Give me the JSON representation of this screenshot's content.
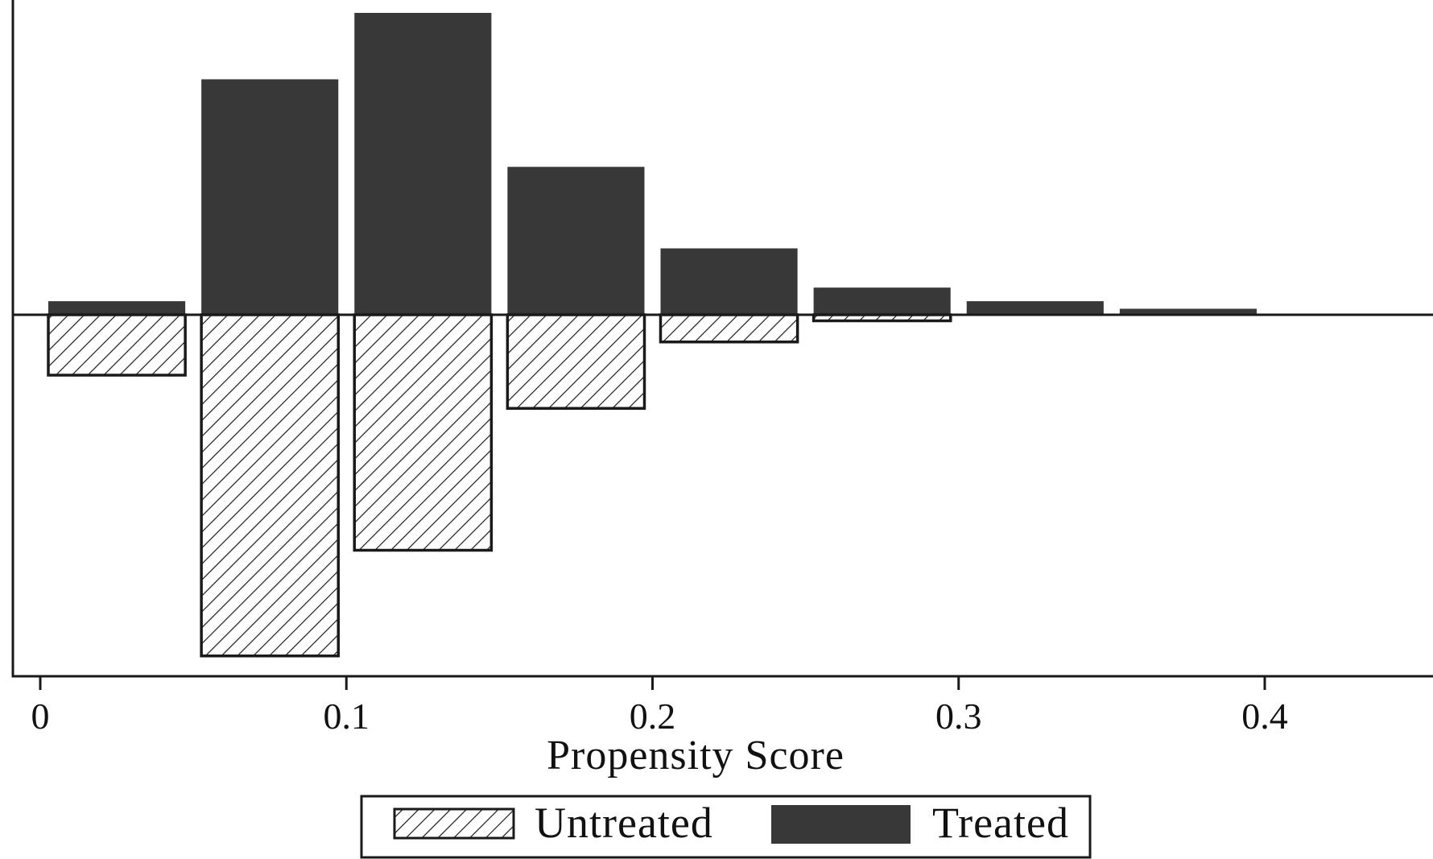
{
  "chart_data": {
    "type": "bar",
    "subtype": "mirrored-histogram",
    "title": "",
    "xlabel": "Propensity Score",
    "ylabel": "",
    "x_ticks": [
      0,
      0.1,
      0.2,
      0.3,
      0.4
    ],
    "x_tick_labels": [
      "0",
      "0.1",
      "0.2",
      "0.3",
      "0.4"
    ],
    "xlim": [
      -0.01,
      0.455
    ],
    "bin_width": 0.05,
    "bins": [
      0.0,
      0.05,
      0.1,
      0.15,
      0.2,
      0.25,
      0.3,
      0.35
    ],
    "bin_ranges": [
      [
        0.0,
        0.05
      ],
      [
        0.05,
        0.1
      ],
      [
        0.1,
        0.15
      ],
      [
        0.15,
        0.2
      ],
      [
        0.2,
        0.25
      ],
      [
        0.25,
        0.3
      ],
      [
        0.3,
        0.35
      ],
      [
        0.35,
        0.4
      ]
    ],
    "series": [
      {
        "name": "Treated",
        "direction": "up",
        "style": "solid",
        "color": "#383838",
        "values": [
          0.045,
          0.78,
          1.0,
          0.49,
          0.22,
          0.09,
          0.045,
          0.02
        ]
      },
      {
        "name": "Untreated",
        "direction": "down",
        "style": "hatched",
        "color": "#ffffff",
        "values": [
          0.2,
          1.13,
          0.78,
          0.31,
          0.09,
          0.02,
          0.0,
          0.0
        ]
      }
    ],
    "grid": false,
    "legend": {
      "placement": "bottom-center",
      "entries": [
        {
          "label": "Untreated",
          "style": "hatched"
        },
        {
          "label": "Treated",
          "style": "solid"
        }
      ]
    }
  }
}
